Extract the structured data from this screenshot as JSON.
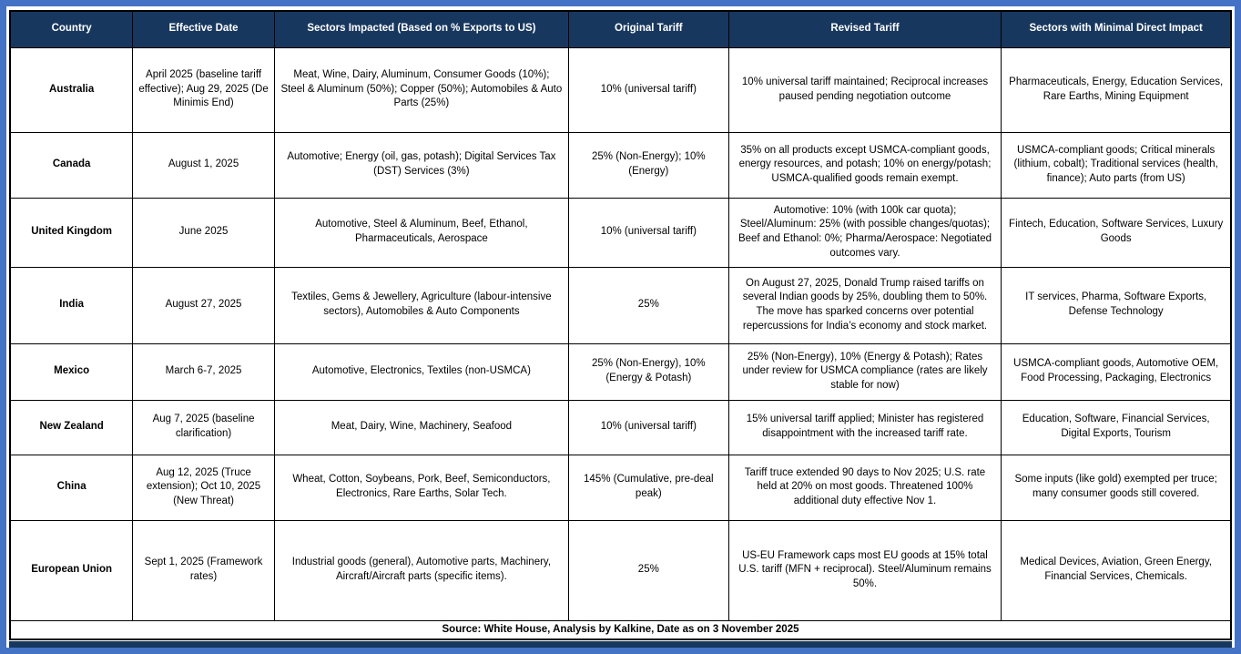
{
  "colors": {
    "header_bg": "#17375E",
    "frame_border": "#4472C4",
    "bottom_bar": "#17375E"
  },
  "table": {
    "headers": [
      "Country",
      "Effective Date",
      "Sectors Impacted (Based on % Exports to US)",
      "Original Tariff",
      "Revised Tariff",
      "Sectors with Minimal Direct Impact"
    ],
    "rows": [
      {
        "country": "Australia",
        "effective_date": "April 2025 (baseline tariff effective); Aug 29, 2025 (De Minimis End)",
        "sectors_impacted": "Meat, Wine, Dairy, Aluminum, Consumer Goods (10%); Steel & Aluminum (50%); Copper (50%); Automobiles & Auto Parts (25%)",
        "original_tariff": "10% (universal tariff)",
        "revised_tariff": "10% universal tariff maintained; Reciprocal increases paused pending negotiation outcome",
        "minimal_impact": "Pharmaceuticals, Energy, Education Services, Rare Earths, Mining Equipment"
      },
      {
        "country": "Canada",
        "effective_date": "August 1, 2025",
        "sectors_impacted": "Automotive; Energy (oil, gas, potash); Digital Services Tax (DST) Services (3%)",
        "original_tariff": "25% (Non-Energy); 10% (Energy)",
        "revised_tariff": "35% on all products except USMCA-compliant goods, energy resources, and potash; 10% on energy/potash; USMCA-qualified goods remain exempt.",
        "minimal_impact": "USMCA-compliant goods; Critical minerals (lithium, cobalt); Traditional services (health, finance); Auto parts (from US)"
      },
      {
        "country": "United Kingdom",
        "effective_date": "June 2025",
        "sectors_impacted": "Automotive, Steel & Aluminum, Beef, Ethanol, Pharmaceuticals, Aerospace",
        "original_tariff": "10% (universal tariff)",
        "revised_tariff": "Automotive: 10% (with 100k car quota); Steel/Aluminum: 25% (with possible changes/quotas); Beef and Ethanol: 0%; Pharma/Aerospace: Negotiated outcomes vary.",
        "minimal_impact": "Fintech, Education, Software Services, Luxury Goods"
      },
      {
        "country": "India",
        "effective_date": "August 27, 2025",
        "sectors_impacted": "Textiles, Gems & Jewellery, Agriculture (labour-intensive sectors), Automobiles & Auto Components",
        "original_tariff": "25%",
        "revised_tariff": "On August 27, 2025, Donald Trump raised tariffs on several Indian goods by 25%, doubling them to 50%. The move has sparked concerns over potential repercussions for India’s economy and stock market.",
        "minimal_impact": "IT services, Pharma, Software Exports, Defense Technology"
      },
      {
        "country": "Mexico",
        "effective_date": "March 6-7, 2025",
        "sectors_impacted": "Automotive, Electronics, Textiles (non-USMCA)",
        "original_tariff": "25% (Non-Energy), 10% (Energy & Potash)",
        "revised_tariff": "25% (Non-Energy), 10% (Energy & Potash); Rates under review for USMCA compliance (rates are likely stable for now)",
        "minimal_impact": "USMCA-compliant goods, Automotive OEM, Food Processing, Packaging, Electronics"
      },
      {
        "country": "New Zealand",
        "effective_date": "Aug 7, 2025 (baseline clarification)",
        "sectors_impacted": "Meat, Dairy, Wine, Machinery, Seafood",
        "original_tariff": "10% (universal tariff)",
        "revised_tariff": "15% universal tariff applied; Minister has registered disappointment with the increased tariff rate.",
        "minimal_impact": "Education, Software, Financial Services, Digital Exports, Tourism"
      },
      {
        "country": "China",
        "effective_date": "Aug 12, 2025 (Truce extension); Oct 10, 2025 (New Threat)",
        "sectors_impacted": "Wheat, Cotton, Soybeans, Pork, Beef, Semiconductors, Electronics, Rare Earths, Solar Tech.",
        "original_tariff": "145% (Cumulative, pre-deal peak)",
        "revised_tariff": "Tariff truce extended 90 days to Nov 2025; U.S. rate held at 20% on most goods. Threatened 100% additional duty effective Nov 1.",
        "minimal_impact": "Some inputs (like gold) exempted per truce; many consumer goods still covered."
      },
      {
        "country": "European Union",
        "effective_date": "Sept 1, 2025 (Framework rates)",
        "sectors_impacted": "Industrial goods (general), Automotive parts, Machinery, Aircraft/Aircraft parts (specific items).",
        "original_tariff": "25%",
        "revised_tariff": "US-EU Framework caps most EU goods at 15% total U.S. tariff (MFN + reciprocal). Steel/Aluminum remains 50%.",
        "minimal_impact": "Medical Devices, Aviation, Green Energy, Financial Services, Chemicals."
      }
    ],
    "source_note": "Source: White House, Analysis by Kalkine, Date as on 3 November 2025"
  }
}
